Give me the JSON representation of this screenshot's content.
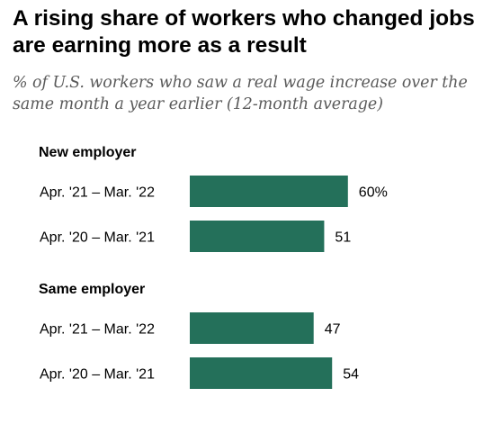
{
  "chart_data": {
    "type": "bar",
    "orientation": "horizontal",
    "title": "A rising share of workers who changed jobs are earning more as a result",
    "subtitle": "% of U.S. workers who saw a real wage increase over the same month a year earlier (12-month average)",
    "xlabel": "",
    "ylabel": "",
    "xlim": [
      0,
      100
    ],
    "grid": false,
    "bar_color": "#24705a",
    "groups": [
      {
        "name": "New employer",
        "categories": [
          "Apr. '21 – Mar. '22",
          "Apr. '20 – Mar. '21"
        ],
        "values": [
          60,
          51
        ],
        "value_labels": [
          "60%",
          "51"
        ]
      },
      {
        "name": "Same employer",
        "categories": [
          "Apr. '21 – Mar. '22",
          "Apr. '20 – Mar. '21"
        ],
        "values": [
          47,
          54
        ],
        "value_labels": [
          "47",
          "54"
        ]
      }
    ]
  }
}
